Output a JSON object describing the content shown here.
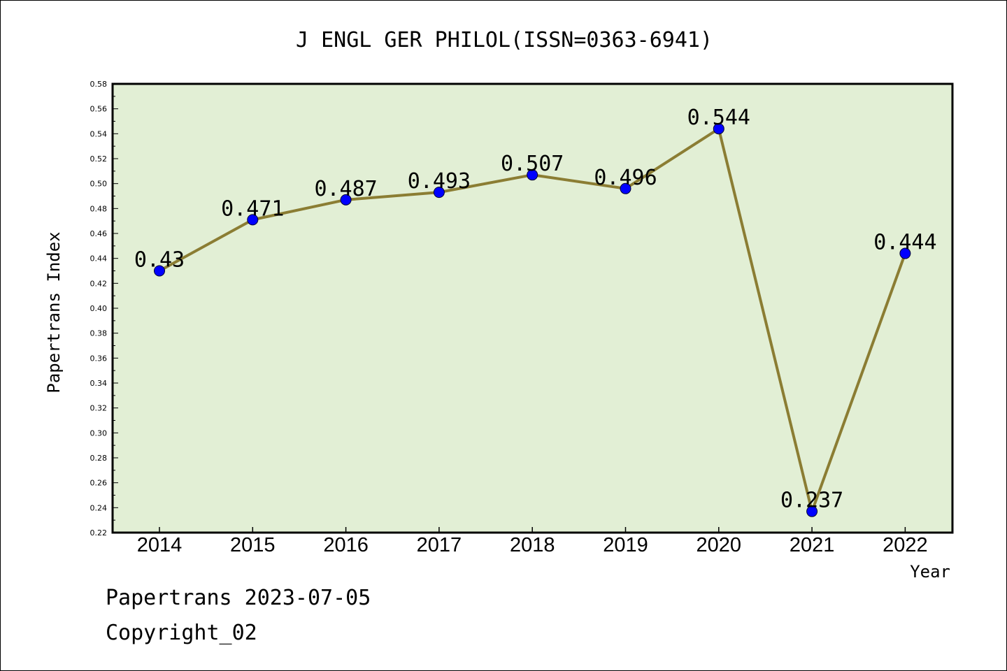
{
  "chart_data": {
    "type": "line",
    "title": "J ENGL GER PHILOL(ISSN=0363-6941)",
    "xlabel": "Year",
    "ylabel": "Papertrans Index",
    "categories": [
      "2014",
      "2015",
      "2016",
      "2017",
      "2018",
      "2019",
      "2020",
      "2021",
      "2022"
    ],
    "series": [
      {
        "values": [
          0.43,
          0.471,
          0.487,
          0.493,
          0.507,
          0.496,
          0.544,
          0.237,
          0.444
        ],
        "labels": [
          "0.43",
          "0.471",
          "0.487",
          "0.493",
          "0.507",
          "0.496",
          "0.544",
          "0.237",
          "0.444"
        ],
        "line_color": "#8b7d33",
        "marker_color": "#0000ff"
      }
    ],
    "ylim": [
      0.22,
      0.58
    ],
    "yticks": [
      "0.22",
      "0.24",
      "0.26",
      "0.28",
      "0.30",
      "0.32",
      "0.34",
      "0.36",
      "0.38",
      "0.40",
      "0.42",
      "0.44",
      "0.46",
      "0.48",
      "0.50",
      "0.52",
      "0.54",
      "0.56",
      "0.58"
    ],
    "grid": false,
    "legend": "none",
    "plot_background": "#e2efd5"
  },
  "footer": {
    "line1": "Papertrans 2023-07-05",
    "line2": "Copyright_02"
  }
}
